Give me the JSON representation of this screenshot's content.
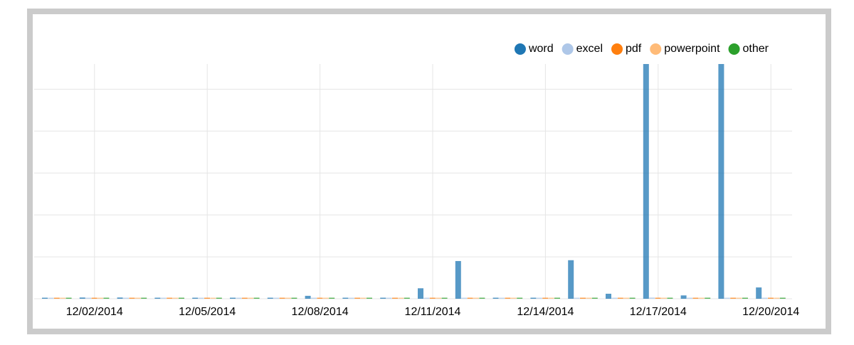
{
  "chart_data": {
    "type": "bar",
    "categories": [
      null,
      "12/02/2014",
      null,
      null,
      "12/05/2014",
      null,
      null,
      "12/08/2014",
      null,
      null,
      "12/11/2014",
      null,
      null,
      "12/14/2014",
      null,
      null,
      "12/17/2014",
      null,
      null,
      "12/20/2014"
    ],
    "series": [
      {
        "name": "word",
        "color": "#1f77b4",
        "values": [
          1,
          3,
          3,
          1,
          1,
          1,
          1,
          7,
          1,
          1,
          25,
          90,
          1,
          1,
          92,
          12,
          560,
          8,
          560,
          27
        ]
      },
      {
        "name": "excel",
        "color": "#aec7e8",
        "values": [
          0,
          0,
          1,
          0,
          0,
          0,
          0,
          0,
          0,
          1,
          0,
          0,
          0,
          0,
          0,
          0,
          3,
          0,
          0,
          0
        ]
      },
      {
        "name": "pdf",
        "color": "#ff7f0e",
        "values": [
          0,
          0,
          0,
          0,
          0,
          0,
          0,
          0,
          0,
          0,
          0,
          0,
          0,
          0,
          0,
          0,
          0,
          0,
          0,
          0
        ]
      },
      {
        "name": "powerpoint",
        "color": "#ffbb78",
        "values": [
          0,
          0,
          0,
          0,
          0,
          0,
          0,
          0,
          0,
          0,
          0,
          0,
          0,
          0,
          0,
          0,
          0,
          0,
          0,
          0
        ]
      },
      {
        "name": "other",
        "color": "#2ca02c",
        "values": [
          0,
          1,
          2,
          0,
          1,
          0,
          0,
          0,
          0,
          0,
          0,
          1,
          0,
          0,
          0,
          0,
          0,
          0,
          0,
          0
        ]
      }
    ],
    "ylim": [
      0,
      560
    ],
    "yticks": [
      0,
      100,
      200,
      300,
      400,
      500
    ],
    "grid": true,
    "legend": "top-right"
  }
}
